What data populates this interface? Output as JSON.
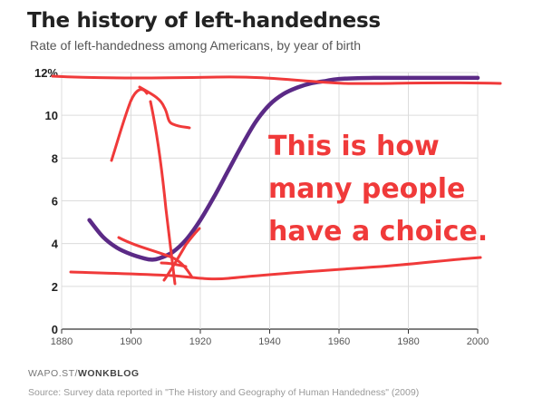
{
  "header": {
    "title": "The history of left-handedness",
    "subtitle": "Rate of left-handedness among Americans, by year of birth"
  },
  "footer": {
    "brand_prefix": "WAPO.ST/",
    "brand_name": "WONKBLOG",
    "source": "Source: Survey data reported in \"The History and Geography of Human Handedness\" (2009)"
  },
  "annotation": {
    "lines": [
      "This is how",
      "many people",
      "have a choice."
    ],
    "color": "#f03a3a"
  },
  "chart_data": {
    "type": "line",
    "title": "The history of left-handedness",
    "subtitle": "Rate of left-handedness among Americans, by year of birth",
    "xlabel": "",
    "ylabel": "",
    "xlim": [
      1880,
      2000
    ],
    "ylim": [
      0,
      12
    ],
    "x_ticks": [
      "1880",
      "1900",
      "1920",
      "1940",
      "1960",
      "1980",
      "2000"
    ],
    "y_ticks": [
      "0",
      "2",
      "4",
      "6",
      "8",
      "10",
      "12%"
    ],
    "grid": true,
    "series": [
      {
        "color": "#5b2a86",
        "x": [
          1888,
          1892,
          1896,
          1900,
          1904,
          1906,
          1908,
          1912,
          1916,
          1920,
          1924,
          1928,
          1932,
          1936,
          1940,
          1944,
          1948,
          1952,
          1956,
          1960,
          1970,
          1980,
          1990,
          2000
        ],
        "y": [
          5.1,
          4.3,
          3.8,
          3.5,
          3.3,
          3.25,
          3.3,
          3.6,
          4.2,
          5.1,
          6.2,
          7.4,
          8.6,
          9.7,
          10.5,
          11.0,
          11.3,
          11.5,
          11.6,
          11.7,
          11.75,
          11.75,
          11.75,
          11.75
        ]
      }
    ]
  },
  "scribbles": {
    "color": "#f03a3a"
  }
}
